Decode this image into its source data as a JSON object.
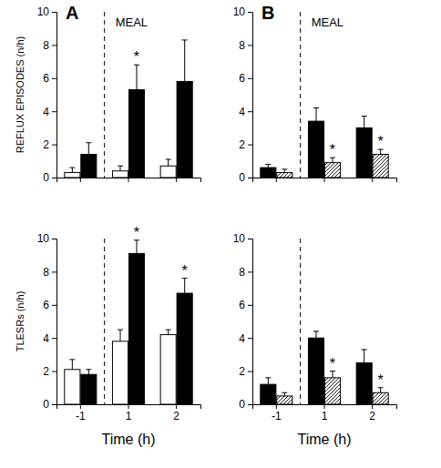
{
  "chart_data": [
    {
      "type": "bar",
      "title": "A",
      "annotation": "MEAL",
      "y_label": "REFLUX EPISODES (n/h)",
      "categories": [
        "-1",
        "1",
        "2"
      ],
      "ylim": [
        0,
        10
      ],
      "yticks": [
        0,
        2,
        4,
        6,
        8,
        10
      ],
      "tick_labels": "y",
      "series": [
        {
          "color": "#ffffff",
          "values": [
            0.3,
            0.4,
            0.7
          ],
          "errors": [
            0.3,
            0.3,
            0.4
          ],
          "significance": [
            null,
            null,
            null
          ]
        },
        {
          "color": "#000000",
          "values": [
            1.4,
            5.3,
            5.8
          ],
          "errors": [
            0.7,
            1.5,
            2.5
          ],
          "significance": [
            null,
            "*",
            null
          ]
        }
      ]
    },
    {
      "type": "bar",
      "y_label": "TLESRs (n/h)",
      "x_label": "Time (h)",
      "categories": [
        "-1",
        "1",
        "2"
      ],
      "ylim": [
        0,
        10
      ],
      "yticks": [
        0,
        2,
        4,
        6,
        8,
        10
      ],
      "series": [
        {
          "color": "#ffffff",
          "values": [
            2.1,
            3.8,
            4.2
          ],
          "errors": [
            0.6,
            0.7,
            0.3
          ],
          "significance": [
            null,
            null,
            null
          ]
        },
        {
          "color": "#000000",
          "values": [
            1.8,
            9.1,
            6.7
          ],
          "errors": [
            0.3,
            0.8,
            0.9
          ],
          "significance": [
            null,
            "*",
            "*"
          ]
        }
      ]
    },
    {
      "type": "bar",
      "title": "B",
      "annotation": "MEAL",
      "categories": [
        "-1",
        "1",
        "2"
      ],
      "ylim": [
        0,
        10
      ],
      "yticks": [
        0,
        2,
        4,
        6,
        8,
        10
      ],
      "tick_labels": "y",
      "series": [
        {
          "color": "#000000",
          "values": [
            0.6,
            3.4,
            3.0
          ],
          "errors": [
            0.2,
            0.8,
            0.7
          ],
          "significance": [
            null,
            null,
            null
          ]
        },
        {
          "color": "#555555",
          "marker": "hatch",
          "values": [
            0.3,
            0.9,
            1.4
          ],
          "errors": [
            0.2,
            0.3,
            0.3
          ],
          "significance": [
            null,
            "*",
            "*"
          ]
        }
      ]
    },
    {
      "type": "bar",
      "x_label": "Time (h)",
      "categories": [
        "-1",
        "1",
        "2"
      ],
      "ylim": [
        0,
        10
      ],
      "yticks": [
        0,
        2,
        4,
        6,
        8,
        10
      ],
      "series": [
        {
          "color": "#000000",
          "values": [
            1.2,
            4.0,
            2.5
          ],
          "errors": [
            0.4,
            0.4,
            0.8
          ],
          "significance": [
            null,
            null,
            null
          ]
        },
        {
          "color": "#555555",
          "marker": "hatch",
          "values": [
            0.5,
            1.6,
            0.7
          ],
          "errors": [
            0.2,
            0.4,
            0.3
          ],
          "significance": [
            null,
            "*",
            "*"
          ]
        }
      ]
    }
  ]
}
